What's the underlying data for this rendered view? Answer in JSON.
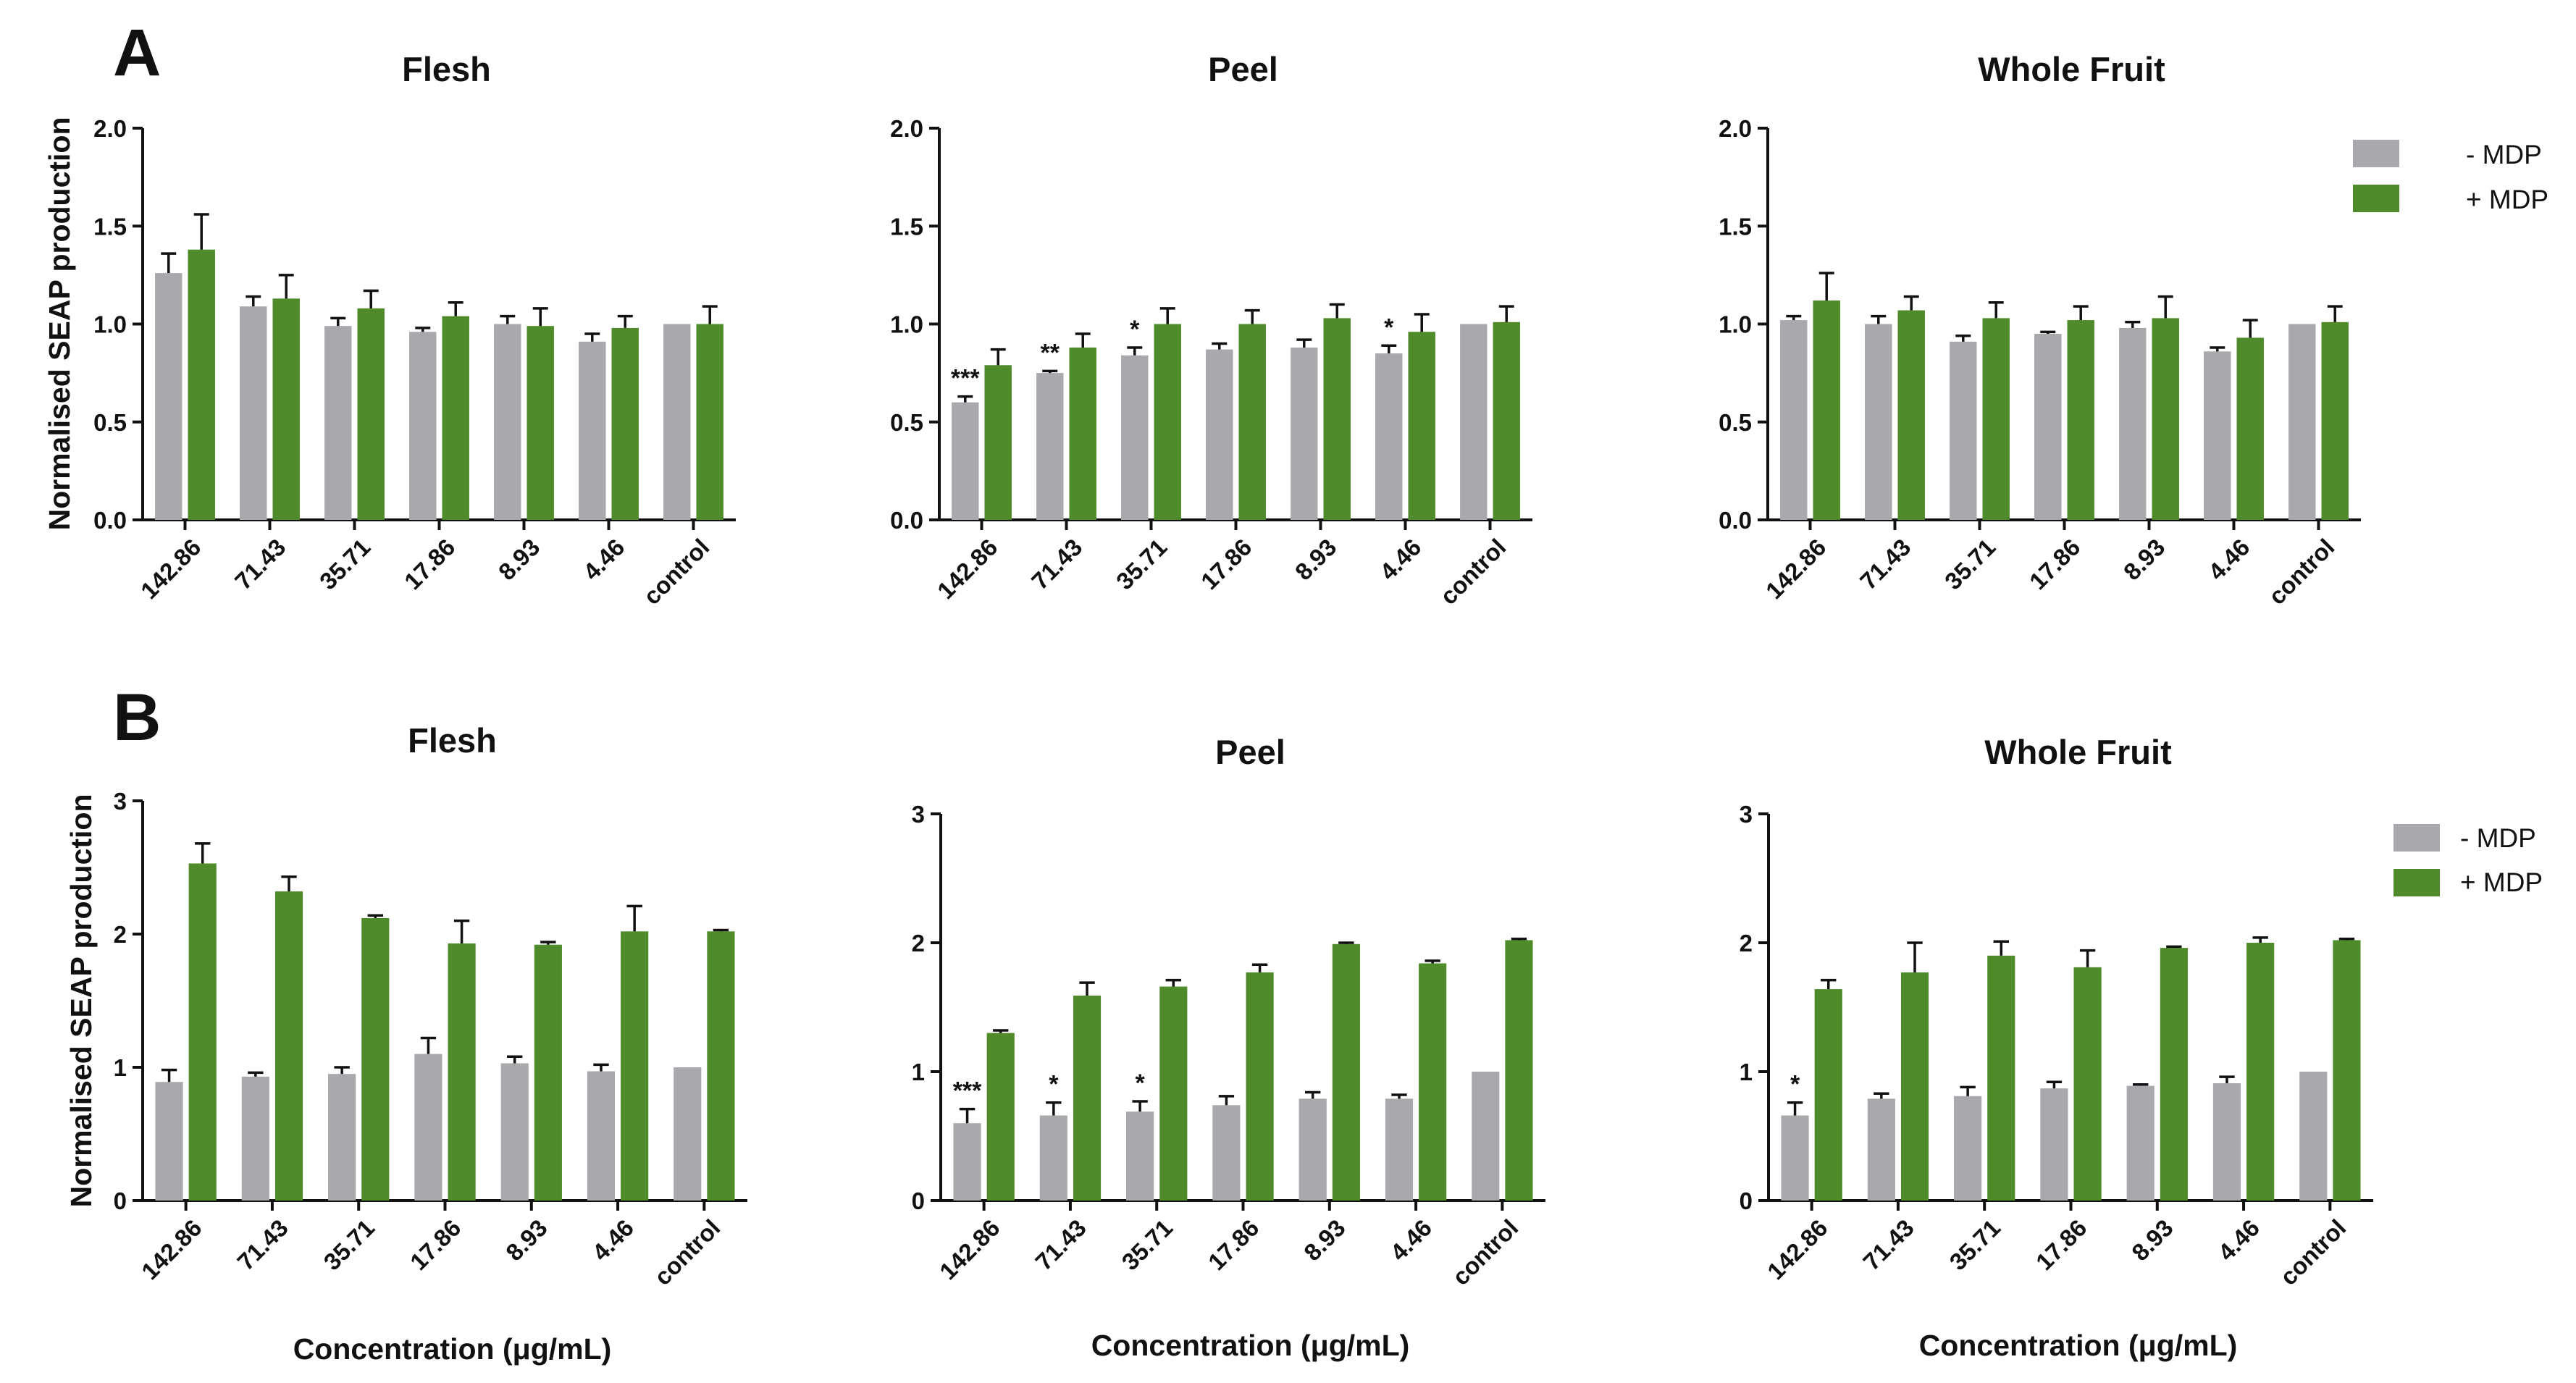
{
  "panels": [
    {
      "letter": "A"
    },
    {
      "letter": "B"
    }
  ],
  "legend": {
    "entries": [
      {
        "label": "- MDP",
        "color": "#a8a8ad"
      },
      {
        "label": "+ MDP",
        "color": "#4f8b2a"
      }
    ]
  },
  "chart_data": [
    {
      "type": "bar",
      "panel": "A",
      "title": "Flesh",
      "xlabel": "",
      "ylabel": "Normalised SEAP production",
      "ylim": [
        0,
        2.0
      ],
      "yticks": [
        "0.0",
        "0.5",
        "1.0",
        "1.5",
        "2.0"
      ],
      "categories": [
        "142.86",
        "71.43",
        "35.71",
        "17.86",
        "8.93",
        "4.46",
        "control"
      ],
      "series": [
        {
          "name": "- MDP",
          "values": [
            1.26,
            1.09,
            0.99,
            0.96,
            1.0,
            0.91,
            1.0
          ],
          "errors": [
            0.1,
            0.05,
            0.04,
            0.02,
            0.04,
            0.04,
            0.0
          ]
        },
        {
          "name": "+ MDP",
          "values": [
            1.38,
            1.13,
            1.08,
            1.04,
            0.99,
            0.98,
            1.0
          ],
          "errors": [
            0.18,
            0.12,
            0.09,
            0.07,
            0.09,
            0.06,
            0.09
          ]
        }
      ],
      "annotations": []
    },
    {
      "type": "bar",
      "panel": "A",
      "title": "Peel",
      "xlabel": "",
      "ylabel": "",
      "ylim": [
        0,
        2.0
      ],
      "yticks": [
        "0.0",
        "0.5",
        "1.0",
        "1.5",
        "2.0"
      ],
      "categories": [
        "142.86",
        "71.43",
        "35.71",
        "17.86",
        "8.93",
        "4.46",
        "control"
      ],
      "series": [
        {
          "name": "- MDP",
          "values": [
            0.6,
            0.75,
            0.84,
            0.87,
            0.88,
            0.85,
            1.0
          ],
          "errors": [
            0.03,
            0.01,
            0.04,
            0.03,
            0.04,
            0.04,
            0.0
          ]
        },
        {
          "name": "+ MDP",
          "values": [
            0.79,
            0.88,
            1.0,
            1.0,
            1.03,
            0.96,
            1.01
          ],
          "errors": [
            0.08,
            0.07,
            0.08,
            0.07,
            0.07,
            0.09,
            0.08
          ]
        }
      ],
      "annotations": [
        {
          "category": "142.86",
          "text": "***"
        },
        {
          "category": "71.43",
          "text": "**"
        },
        {
          "category": "35.71",
          "text": "*"
        },
        {
          "category": "4.46",
          "text": "*"
        }
      ]
    },
    {
      "type": "bar",
      "panel": "A",
      "title": "Whole Fruit",
      "xlabel": "",
      "ylabel": "",
      "ylim": [
        0,
        2.0
      ],
      "yticks": [
        "0.0",
        "0.5",
        "1.0",
        "1.5",
        "2.0"
      ],
      "categories": [
        "142.86",
        "71.43",
        "35.71",
        "17.86",
        "8.93",
        "4.46",
        "control"
      ],
      "series": [
        {
          "name": "- MDP",
          "values": [
            1.02,
            1.0,
            0.91,
            0.95,
            0.98,
            0.86,
            1.0
          ],
          "errors": [
            0.02,
            0.04,
            0.03,
            0.01,
            0.03,
            0.02,
            0.0
          ]
        },
        {
          "name": "+ MDP",
          "values": [
            1.12,
            1.07,
            1.03,
            1.02,
            1.03,
            0.93,
            1.01
          ],
          "errors": [
            0.14,
            0.07,
            0.08,
            0.07,
            0.11,
            0.09,
            0.08
          ]
        }
      ],
      "annotations": []
    },
    {
      "type": "bar",
      "panel": "B",
      "title": "Flesh",
      "xlabel": "Concentration (μg/mL)",
      "ylabel": "Normalised SEAP production",
      "ylim": [
        0,
        3
      ],
      "yticks": [
        "0",
        "1",
        "2",
        "3"
      ],
      "categories": [
        "142.86",
        "71.43",
        "35.71",
        "17.86",
        "8.93",
        "4.46",
        "control"
      ],
      "series": [
        {
          "name": "- MDP",
          "values": [
            0.89,
            0.93,
            0.95,
            1.1,
            1.03,
            0.97,
            1.0
          ],
          "errors": [
            0.09,
            0.03,
            0.05,
            0.12,
            0.05,
            0.05,
            0.0
          ]
        },
        {
          "name": "+ MDP",
          "values": [
            2.53,
            2.32,
            2.12,
            1.93,
            1.92,
            2.02,
            2.02
          ],
          "errors": [
            0.15,
            0.11,
            0.02,
            0.17,
            0.02,
            0.19,
            0.01
          ]
        }
      ],
      "annotations": []
    },
    {
      "type": "bar",
      "panel": "B",
      "title": "Peel",
      "xlabel": "Concentration (μg/mL)",
      "ylabel": "",
      "ylim": [
        0,
        3
      ],
      "yticks": [
        "0",
        "1",
        "2",
        "3"
      ],
      "categories": [
        "142.86",
        "71.43",
        "35.71",
        "17.86",
        "8.93",
        "4.46",
        "control"
      ],
      "series": [
        {
          "name": "- MDP",
          "values": [
            0.6,
            0.66,
            0.69,
            0.74,
            0.79,
            0.79,
            1.0
          ],
          "errors": [
            0.11,
            0.1,
            0.08,
            0.07,
            0.05,
            0.03,
            0.0
          ]
        },
        {
          "name": "+ MDP",
          "values": [
            1.3,
            1.59,
            1.66,
            1.77,
            1.99,
            1.84,
            2.02
          ],
          "errors": [
            0.02,
            0.1,
            0.05,
            0.06,
            0.01,
            0.02,
            0.01
          ]
        }
      ],
      "annotations": [
        {
          "category": "142.86",
          "text": "***"
        },
        {
          "category": "71.43",
          "text": "*"
        },
        {
          "category": "35.71",
          "text": "*"
        }
      ]
    },
    {
      "type": "bar",
      "panel": "B",
      "title": "Whole Fruit",
      "xlabel": "Concentration (μg/mL)",
      "ylabel": "",
      "ylim": [
        0,
        3
      ],
      "yticks": [
        "0",
        "1",
        "2",
        "3"
      ],
      "categories": [
        "142.86",
        "71.43",
        "35.71",
        "17.86",
        "8.93",
        "4.46",
        "control"
      ],
      "series": [
        {
          "name": "- MDP",
          "values": [
            0.66,
            0.79,
            0.81,
            0.87,
            0.89,
            0.91,
            1.0
          ],
          "errors": [
            0.1,
            0.04,
            0.07,
            0.05,
            0.01,
            0.05,
            0.0
          ]
        },
        {
          "name": "+ MDP",
          "values": [
            1.64,
            1.77,
            1.9,
            1.81,
            1.96,
            2.0,
            2.02
          ],
          "errors": [
            0.07,
            0.23,
            0.11,
            0.13,
            0.01,
            0.04,
            0.01
          ]
        }
      ],
      "annotations": [
        {
          "category": "142.86",
          "text": "*"
        }
      ]
    }
  ]
}
